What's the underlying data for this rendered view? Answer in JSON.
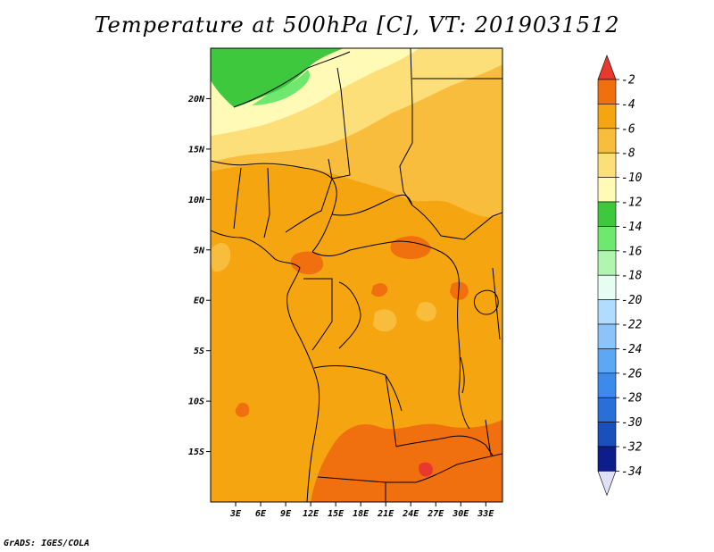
{
  "title": "Temperature at 500hPa [C], VT: 2019031512",
  "credit": "GrADS: IGES/COLA",
  "map": {
    "lon_range": [
      0,
      35
    ],
    "lat_range": [
      -20,
      25
    ],
    "lon_ticks": [
      "3E",
      "6E",
      "9E",
      "12E",
      "15E",
      "18E",
      "21E",
      "24E",
      "27E",
      "30E",
      "33E"
    ],
    "lon_tick_values": [
      3,
      6,
      9,
      12,
      15,
      18,
      21,
      24,
      27,
      30,
      33
    ],
    "lat_ticks": [
      "20N",
      "15N",
      "10N",
      "5N",
      "EQ",
      "5S",
      "10S",
      "15S"
    ],
    "lat_tick_values": [
      20,
      15,
      10,
      5,
      0,
      -5,
      -10,
      -15
    ]
  },
  "colorbar": {
    "labels": [
      "-2",
      "-4",
      "-6",
      "-8",
      "-10",
      "-12",
      "-14",
      "-16",
      "-18",
      "-20",
      "-22",
      "-24",
      "-26",
      "-28",
      "-30",
      "-32",
      "-34"
    ],
    "colors": [
      "#e8392e",
      "#f06f0e",
      "#f5a510",
      "#f9bd3e",
      "#fddf7a",
      "#fffab6",
      "#3ec83e",
      "#6ee86e",
      "#b0f5b0",
      "#e6fdf2",
      "#b2dcfd",
      "#8cc3f9",
      "#5ea7f5",
      "#3c8aec",
      "#2a6fd8",
      "#1a50bc",
      "#0d1e8c",
      "#e0e0f8"
    ]
  }
}
